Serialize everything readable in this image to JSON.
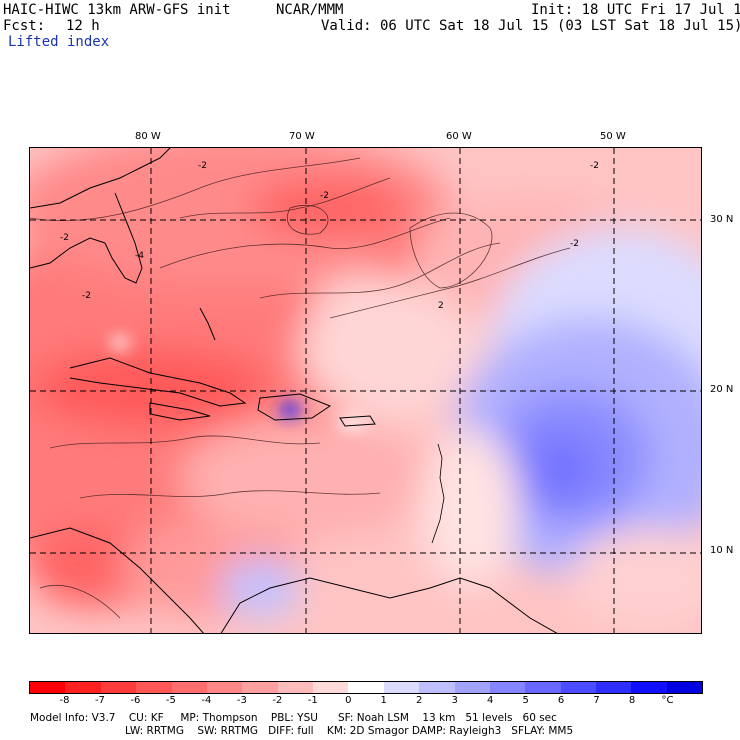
{
  "header": {
    "model": "HAIC-HIWC 13km ARW-GFS init",
    "center": "NCAR/MMM",
    "init": "Init: 18 UTC Fri 17 Jul 15",
    "fcst_label": "Fcst:",
    "fcst_value": "12 h",
    "valid": "Valid: 06 UTC Sat 18 Jul 15 (03 LST Sat 18 Jul 15)",
    "field": "Lifted index"
  },
  "map": {
    "lon_labels": [
      "80 W",
      "70 W",
      "60 W",
      "50 W"
    ],
    "lat_labels": [
      "30 N",
      "20 N",
      "10 N"
    ],
    "contour_labels": [
      "-2",
      "-2",
      "-4",
      "-2",
      "-2",
      "-2",
      "-2",
      "2"
    ]
  },
  "colorbar": {
    "labels": [
      "-8",
      "-7",
      "-6",
      "-5",
      "-4",
      "-3",
      "-2",
      "-1",
      "0",
      "1",
      "2",
      "3",
      "4",
      "5",
      "6",
      "7",
      "8",
      "°C"
    ],
    "colors": [
      "#ff0000",
      "#ff2020",
      "#ff3c3c",
      "#ff5656",
      "#ff6e6e",
      "#ff8787",
      "#ffa0a0",
      "#ffbcbc",
      "#ffdada",
      "#ffffff",
      "#dcdcff",
      "#bfbfff",
      "#a2a2ff",
      "#8585ff",
      "#6868ff",
      "#4b4bff",
      "#2e2eff",
      "#1010ff",
      "#0000e0"
    ]
  },
  "footer": {
    "line1": "Model Info: V3.7    CU: KF     MP: Thompson    PBL: YSU      SF: Noah LSM    13 km   51 levels   60 sec",
    "line2": "LW: RRTMG    SW: RRTMG   DIFF: full    KM: 2D Smagor DAMP: Rayleigh3   SFLAY: MM5"
  }
}
